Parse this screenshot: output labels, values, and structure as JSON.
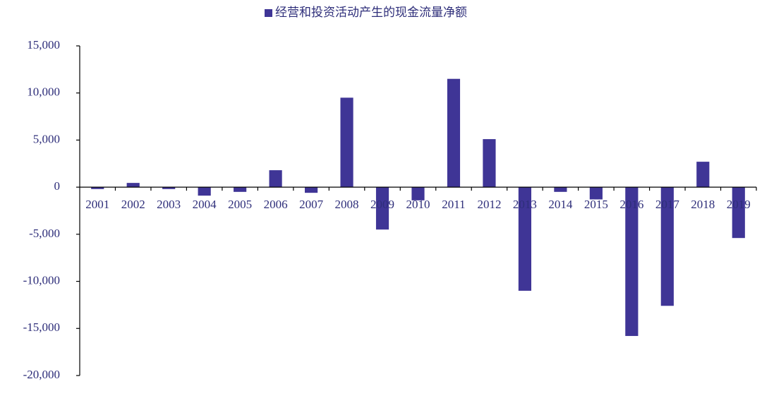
{
  "chart_data": {
    "type": "bar",
    "legend": "经营和投资活动产生的现金流量净额",
    "color": "#3f3596",
    "categories": [
      "2001",
      "2002",
      "2003",
      "2004",
      "2005",
      "2006",
      "2007",
      "2008",
      "2009",
      "2010",
      "2011",
      "2012",
      "2013",
      "2014",
      "2015",
      "2016",
      "2017",
      "2018",
      "2019"
    ],
    "values": [
      -200,
      450,
      -200,
      -900,
      -500,
      1800,
      -600,
      9500,
      -4500,
      -1400,
      11500,
      5100,
      -11000,
      -500,
      -1300,
      -15800,
      -12600,
      2700,
      -5400
    ],
    "ylim": [
      -20000,
      15000
    ],
    "yticks": [
      {
        "value": -20000,
        "label": "-20,000"
      },
      {
        "value": -15000,
        "label": "-15,000"
      },
      {
        "value": -10000,
        "label": "-10,000"
      },
      {
        "value": -5000,
        "label": "-5,000"
      },
      0,
      {
        "value": 5000,
        "label": "5,000"
      },
      {
        "value": 10000,
        "label": "10,000"
      },
      {
        "value": 15000,
        "label": "15,000"
      }
    ],
    "grid": false
  }
}
